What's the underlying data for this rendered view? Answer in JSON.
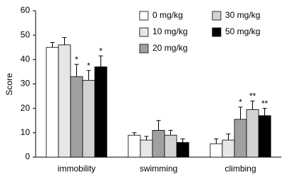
{
  "chart_data": {
    "type": "bar",
    "y_label": "Score",
    "categories": [
      "immobility",
      "swimming",
      "climbing"
    ],
    "series": [
      {
        "name": "0 mg/kg",
        "color": "#ffffff",
        "values": [
          45,
          9,
          5.5
        ],
        "errors": [
          2,
          1,
          2
        ],
        "significance": [
          null,
          null,
          null
        ]
      },
      {
        "name": "10 mg/kg",
        "color": "#e6e6e6",
        "values": [
          46,
          7,
          7
        ],
        "errors": [
          3,
          1.5,
          2.5
        ],
        "significance": [
          null,
          null,
          null
        ]
      },
      {
        "name": "20 mg/kg",
        "color": "#a0a0a0",
        "values": [
          33,
          11,
          15.5
        ],
        "errors": [
          5,
          4,
          5
        ],
        "significance": [
          "*",
          null,
          "*"
        ]
      },
      {
        "name": "30 mg/kg",
        "color": "#d2d2d2",
        "values": [
          31.5,
          9,
          19.5
        ],
        "errors": [
          4,
          2,
          3.5
        ],
        "significance": [
          "*",
          null,
          "**"
        ]
      },
      {
        "name": "50 mg/kg",
        "color": "#000000",
        "values": [
          37,
          6,
          17
        ],
        "errors": [
          4.5,
          1.5,
          3
        ],
        "significance": [
          "*",
          null,
          "**"
        ]
      }
    ],
    "ylim": [
      0,
      60
    ],
    "yticks": [
      0,
      10,
      20,
      30,
      40,
      50,
      60
    ],
    "grid": false
  }
}
